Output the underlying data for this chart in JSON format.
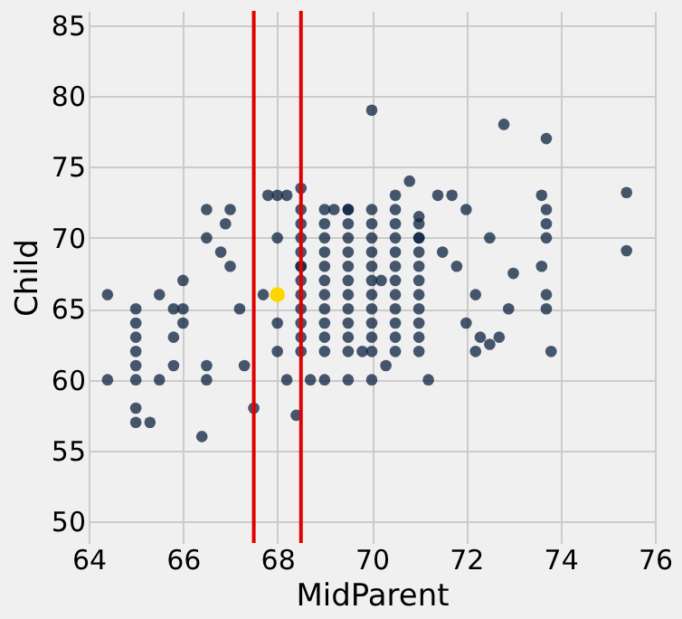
{
  "chart_data": {
    "type": "scatter",
    "xlabel": "MidParent",
    "ylabel": "Child",
    "xlim": [
      64,
      76
    ],
    "xticks": [
      64,
      66,
      68,
      70,
      72,
      74,
      76
    ],
    "ylim": [
      48.5,
      86
    ],
    "yticks": [
      50,
      55,
      60,
      65,
      70,
      75,
      80,
      85
    ],
    "grid": true,
    "marker": "circle",
    "series": [
      {
        "color": "#0c2340",
        "x": [
          64.4,
          64.4,
          65,
          65,
          65,
          65,
          65,
          65,
          65,
          65,
          65.3,
          65.5,
          65.5,
          65.8,
          65.8,
          65.8,
          66,
          66,
          66,
          66.4,
          66.5,
          66.5,
          66.5,
          66.8,
          66.5,
          66.9,
          67,
          67,
          67.2,
          67.3,
          67.5,
          67.7,
          67.8,
          68,
          68.2,
          68.5,
          68.4,
          68,
          68.2,
          68,
          68,
          68.5,
          68.7,
          69,
          69.2,
          69.5,
          69.5,
          69.8,
          70,
          70.2,
          70,
          70.3,
          70.5,
          70.8,
          71,
          71,
          71.2,
          71.4,
          71.5,
          71.7,
          71.8,
          72,
          72,
          72.2,
          72.2,
          72.3,
          72.5,
          72.5,
          72.7,
          72.9,
          72.8,
          73,
          73.7,
          73.6,
          73.7,
          73.7,
          73.7,
          73.6,
          73.7,
          73.7,
          73.8,
          75.4,
          75.4,
          68.5,
          68.5,
          68.5,
          68.5,
          68.5,
          68.5,
          68.5,
          68.5,
          68.5,
          68.5,
          68.5,
          69,
          69,
          69,
          69,
          69,
          69,
          69,
          69,
          69,
          69,
          69,
          69.5,
          69.5,
          69.5,
          69.5,
          69.5,
          69.5,
          69.5,
          69.5,
          69.5,
          69.5,
          69.5,
          70,
          70,
          70,
          70,
          70,
          70,
          70,
          70,
          70,
          70,
          70,
          70.5,
          70.5,
          70.5,
          70.5,
          70.5,
          70.5,
          70.5,
          70.5,
          70.5,
          70.5,
          70.5,
          71,
          71,
          71,
          71,
          71,
          71,
          71,
          71,
          71,
          71
        ],
        "values": [
          66,
          60,
          65,
          64,
          63,
          62,
          61,
          60,
          58,
          57,
          57,
          60,
          66,
          65,
          63,
          61,
          67,
          65,
          64,
          56,
          60,
          61,
          70,
          69,
          72,
          71,
          72,
          68,
          65,
          61,
          58,
          66,
          73,
          73,
          73,
          73.5,
          57.5,
          62,
          60,
          64,
          70,
          68,
          60,
          60,
          72,
          72,
          60,
          62,
          79,
          67,
          60,
          61,
          73,
          74,
          71.5,
          70,
          60,
          73,
          69,
          73,
          68,
          72,
          64,
          66,
          62,
          63,
          62.5,
          70,
          63,
          65,
          78,
          67.5,
          77,
          73,
          72,
          71,
          70,
          68,
          66,
          65,
          62,
          73.2,
          69.1,
          62,
          63,
          64,
          65,
          66,
          67,
          68,
          69,
          70,
          71,
          72,
          62,
          63,
          64,
          65,
          66,
          67,
          68,
          69,
          70,
          71,
          72,
          62,
          63,
          64,
          65,
          66,
          67,
          68,
          69,
          70,
          71,
          72,
          62,
          63,
          64,
          65,
          66,
          67,
          68,
          69,
          70,
          71,
          72,
          62,
          63,
          64,
          65,
          66,
          67,
          68,
          69,
          70,
          71,
          72,
          62,
          63,
          64,
          65,
          66,
          67,
          68,
          69,
          70,
          71
        ]
      },
      {
        "color": "#ffd700",
        "x": [
          68
        ],
        "values": [
          66
        ]
      }
    ],
    "ref_lines": [
      {
        "axis": "x",
        "value": 67.5,
        "color": "#e00000"
      },
      {
        "axis": "x",
        "value": 68.5,
        "color": "#e00000"
      }
    ]
  }
}
